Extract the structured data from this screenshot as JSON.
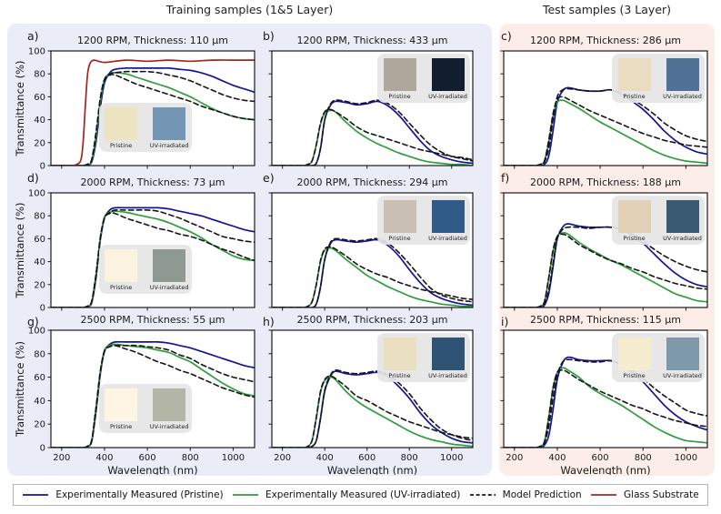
{
  "headers": {
    "training": "Training samples (1&5 Layer)",
    "test": "Test samples (3 Layer)"
  },
  "colors": {
    "pristine_line": "#14149b",
    "uv_line": "#2e9e3c",
    "model_line": "#151515",
    "glass_line": "#a42520",
    "training_bg": "#eaecf8",
    "test_bg": "#fcede8"
  },
  "legend": {
    "entries": [
      {
        "key": "pristine",
        "label": "Experimentally Measured (Pristine)",
        "color": "#14149b",
        "dash": false
      },
      {
        "key": "uv",
        "label": "Experimentally Measured (UV-irradiated)",
        "color": "#2e9e3c",
        "dash": false
      },
      {
        "key": "model",
        "label": "Model Prediction",
        "color": "#151515",
        "dash": true
      },
      {
        "key": "glass",
        "label": "Glass Substrate",
        "color": "#a42520",
        "dash": false
      }
    ]
  },
  "inset_labels": {
    "pristine": "Pristine",
    "uv": "UV-irradiated"
  },
  "chart_data": {
    "type": "line",
    "axes": {
      "xlabel": "Wavelength (nm)",
      "ylabel": "Transmittance (%)",
      "xticks": [
        200,
        400,
        600,
        800,
        1000
      ],
      "yticks": [
        0,
        20,
        40,
        60,
        80,
        100
      ],
      "xlim": [
        150,
        1100
      ],
      "ylim": [
        0,
        100
      ],
      "grid": false
    },
    "x": [
      150,
      250,
      300,
      320,
      340,
      360,
      380,
      400,
      425,
      450,
      500,
      550,
      600,
      650,
      700,
      750,
      800,
      850,
      900,
      950,
      1000,
      1050,
      1100
    ],
    "panels": [
      {
        "id": "a",
        "letter": "a)",
        "title": "1200 RPM, Thickness: 110 μm",
        "section": "training",
        "row": 0,
        "col": 0,
        "inset": {
          "pos": "bottom",
          "pristine_color": "#ece3c1",
          "uv_color": "#7396b4"
        },
        "series": {
          "pristine": [
            0,
            0,
            0,
            1,
            3,
            20,
            50,
            72,
            81,
            84,
            85,
            85,
            85,
            85,
            85,
            84,
            83,
            81,
            78,
            74,
            70,
            67,
            64
          ],
          "uv": [
            0,
            0,
            0,
            1,
            4,
            24,
            55,
            75,
            80,
            81,
            80,
            77,
            74,
            71,
            68,
            64,
            60,
            55,
            50,
            46,
            43,
            41,
            40
          ],
          "model_pristine": [
            0,
            0,
            0,
            1,
            5,
            28,
            58,
            75,
            80,
            81,
            82,
            82,
            82,
            81,
            79,
            77,
            74,
            70,
            66,
            62,
            59,
            57,
            56
          ],
          "model_uv": [
            0,
            0,
            0,
            1,
            5,
            28,
            58,
            75,
            79,
            79,
            75,
            71,
            68,
            65,
            62,
            59,
            56,
            52,
            49,
            46,
            43,
            41,
            40
          ]
        },
        "glass": {
          "x": [
            150,
            240,
            270,
            290,
            300,
            310,
            320,
            330,
            350,
            400,
            500,
            600,
            700,
            800,
            900,
            1000,
            1100
          ],
          "y": [
            0,
            0,
            1,
            5,
            20,
            50,
            78,
            88,
            92,
            90,
            92,
            91,
            92,
            91,
            92,
            92,
            92
          ]
        }
      },
      {
        "id": "b",
        "letter": "b)",
        "title": "1200 RPM, Thickness: 433 μm",
        "section": "training",
        "row": 0,
        "col": 1,
        "inset": {
          "pos": "topright",
          "pristine_color": "#aea79c",
          "uv_color": "#111e30"
        },
        "series": {
          "pristine": [
            0,
            0,
            0,
            0,
            0,
            2,
            15,
            40,
            52,
            56,
            55,
            53,
            54,
            56,
            52,
            44,
            33,
            22,
            13,
            8,
            5,
            3,
            2
          ],
          "uv": [
            0,
            0,
            0,
            1,
            4,
            18,
            36,
            46,
            48,
            47,
            38,
            30,
            24,
            19,
            15,
            11,
            8,
            5,
            3,
            2,
            1,
            1,
            0
          ],
          "model_pristine": [
            0,
            0,
            0,
            0,
            0,
            2,
            15,
            40,
            53,
            57,
            56,
            54,
            55,
            57,
            54,
            47,
            37,
            27,
            18,
            12,
            8,
            6,
            4
          ],
          "model_uv": [
            0,
            0,
            0,
            1,
            4,
            18,
            37,
            47,
            49,
            47,
            41,
            34,
            29,
            26,
            23,
            20,
            17,
            14,
            12,
            10,
            8,
            7,
            5
          ]
        }
      },
      {
        "id": "c",
        "letter": "c)",
        "title": "1200 RPM, Thickness: 286 μm",
        "section": "test",
        "row": 0,
        "col": 2,
        "inset": {
          "pos": "topright",
          "pristine_color": "#e9dcc1",
          "uv_color": "#4f7296"
        },
        "series": {
          "pristine": [
            0,
            0,
            0,
            0,
            1,
            8,
            30,
            55,
            65,
            68,
            66,
            65,
            65,
            66,
            62,
            56,
            49,
            40,
            30,
            22,
            16,
            12,
            10
          ],
          "uv": [
            0,
            0,
            0,
            1,
            4,
            20,
            42,
            55,
            57,
            55,
            50,
            44,
            38,
            33,
            28,
            23,
            18,
            13,
            9,
            6,
            4,
            3,
            2
          ],
          "model_pristine": [
            0,
            0,
            0,
            1,
            3,
            15,
            40,
            60,
            66,
            67,
            66,
            65,
            65,
            66,
            63,
            58,
            52,
            45,
            37,
            31,
            26,
            23,
            21
          ],
          "model_uv": [
            0,
            0,
            0,
            1,
            4,
            22,
            45,
            58,
            60,
            58,
            53,
            48,
            44,
            40,
            36,
            32,
            28,
            25,
            22,
            20,
            18,
            17,
            16
          ]
        }
      },
      {
        "id": "d",
        "letter": "d)",
        "title": "2000 RPM, Thickness: 73 μm",
        "section": "training",
        "row": 1,
        "col": 0,
        "inset": {
          "pos": "bottom",
          "pristine_color": "#fbf3df",
          "uv_color": "#8f9a92"
        },
        "series": {
          "pristine": [
            0,
            0,
            0,
            1,
            4,
            25,
            58,
            78,
            85,
            87,
            87,
            87,
            87,
            87,
            86,
            84,
            82,
            80,
            77,
            74,
            71,
            68,
            66
          ],
          "uv": [
            0,
            0,
            0,
            1,
            5,
            28,
            60,
            79,
            83,
            84,
            83,
            81,
            79,
            77,
            74,
            70,
            66,
            61,
            55,
            50,
            45,
            42,
            41
          ],
          "model_pristine": [
            0,
            0,
            0,
            1,
            5,
            28,
            60,
            78,
            83,
            85,
            85,
            85,
            85,
            84,
            81,
            78,
            74,
            70,
            66,
            62,
            60,
            58,
            57
          ],
          "model_uv": [
            0,
            0,
            0,
            1,
            5,
            28,
            60,
            78,
            82,
            82,
            78,
            75,
            72,
            69,
            67,
            64,
            62,
            59,
            55,
            51,
            48,
            44,
            41
          ]
        }
      },
      {
        "id": "e",
        "letter": "e)",
        "title": "2000 RPM, Thickness: 294 μm",
        "section": "training",
        "row": 1,
        "col": 1,
        "inset": {
          "pos": "topright",
          "pristine_color": "#c9bfb3",
          "uv_color": "#2e5b87"
        },
        "series": {
          "pristine": [
            0,
            0,
            0,
            0,
            0,
            3,
            18,
            42,
            55,
            59,
            58,
            57,
            58,
            59,
            54,
            45,
            33,
            22,
            13,
            8,
            5,
            3,
            2
          ],
          "uv": [
            0,
            0,
            0,
            1,
            5,
            20,
            40,
            50,
            52,
            50,
            42,
            35,
            28,
            23,
            18,
            14,
            10,
            7,
            5,
            3,
            2,
            1,
            1
          ],
          "model_pristine": [
            0,
            0,
            0,
            0,
            0,
            3,
            18,
            42,
            56,
            60,
            59,
            58,
            59,
            60,
            56,
            48,
            38,
            27,
            17,
            11,
            8,
            6,
            5
          ],
          "model_uv": [
            0,
            0,
            0,
            1,
            5,
            20,
            41,
            51,
            53,
            51,
            45,
            38,
            33,
            29,
            26,
            22,
            19,
            16,
            14,
            12,
            10,
            8,
            7
          ]
        }
      },
      {
        "id": "f",
        "letter": "f)",
        "title": "2000 RPM, Thickness: 188 μm",
        "section": "test",
        "row": 1,
        "col": 2,
        "inset": {
          "pos": "topright",
          "pristine_color": "#e2d1b7",
          "uv_color": "#3a5a74"
        },
        "series": {
          "pristine": [
            0,
            0,
            0,
            0,
            2,
            12,
            35,
            60,
            70,
            73,
            71,
            70,
            70,
            70,
            68,
            63,
            56,
            47,
            38,
            30,
            24,
            20,
            18
          ],
          "uv": [
            0,
            0,
            0,
            1,
            5,
            25,
            48,
            62,
            65,
            64,
            57,
            51,
            46,
            41,
            37,
            32,
            27,
            22,
            17,
            12,
            9,
            6,
            5
          ],
          "model_pristine": [
            0,
            0,
            0,
            1,
            3,
            15,
            38,
            60,
            68,
            70,
            70,
            69,
            70,
            70,
            68,
            64,
            58,
            51,
            45,
            40,
            36,
            33,
            31
          ],
          "model_uv": [
            0,
            0,
            0,
            1,
            5,
            26,
            50,
            62,
            64,
            62,
            55,
            50,
            45,
            41,
            38,
            34,
            31,
            27,
            24,
            21,
            19,
            17,
            16
          ]
        }
      },
      {
        "id": "g",
        "letter": "g)",
        "title": "2500 RPM, Thickness: 55 μm",
        "section": "training",
        "row": 2,
        "col": 0,
        "inset": {
          "pos": "bottom",
          "pristine_color": "#fef6e3",
          "uv_color": "#b3b6a6"
        },
        "series": {
          "pristine": [
            0,
            0,
            0,
            1,
            5,
            30,
            62,
            82,
            88,
            90,
            90,
            90,
            90,
            90,
            89,
            87,
            85,
            82,
            79,
            76,
            73,
            70,
            68
          ],
          "uv": [
            0,
            0,
            0,
            1,
            6,
            33,
            64,
            83,
            87,
            88,
            87,
            86,
            85,
            83,
            81,
            77,
            73,
            67,
            61,
            55,
            50,
            46,
            44
          ],
          "model_pristine": [
            0,
            0,
            0,
            1,
            6,
            33,
            64,
            82,
            86,
            87,
            87,
            87,
            86,
            85,
            83,
            79,
            76,
            71,
            67,
            63,
            60,
            58,
            56
          ],
          "model_uv": [
            0,
            0,
            0,
            1,
            6,
            33,
            64,
            82,
            86,
            87,
            84,
            81,
            77,
            73,
            70,
            66,
            63,
            59,
            55,
            51,
            48,
            45,
            43
          ]
        }
      },
      {
        "id": "h",
        "letter": "h)",
        "title": "2500 RPM, Thickness: 203 μm",
        "section": "training",
        "row": 2,
        "col": 1,
        "inset": {
          "pos": "topright",
          "pristine_color": "#ebdfc2",
          "uv_color": "#2e5374"
        },
        "series": {
          "pristine": [
            0,
            0,
            0,
            0,
            1,
            6,
            25,
            48,
            60,
            65,
            63,
            62,
            63,
            64,
            60,
            52,
            42,
            30,
            20,
            13,
            8,
            5,
            4
          ],
          "uv": [
            0,
            0,
            0,
            1,
            6,
            25,
            47,
            57,
            60,
            58,
            48,
            40,
            34,
            29,
            24,
            19,
            14,
            10,
            7,
            5,
            3,
            2,
            1
          ],
          "model_pristine": [
            0,
            0,
            0,
            0,
            1,
            6,
            25,
            49,
            61,
            66,
            64,
            63,
            64,
            65,
            62,
            55,
            46,
            34,
            24,
            16,
            11,
            8,
            6
          ],
          "model_uv": [
            0,
            0,
            0,
            1,
            6,
            26,
            48,
            58,
            61,
            59,
            52,
            44,
            40,
            35,
            30,
            26,
            22,
            19,
            16,
            13,
            11,
            9,
            8
          ]
        }
      },
      {
        "id": "i",
        "letter": "i)",
        "title": "2500 RPM, Thickness: 115 μm",
        "section": "test",
        "row": 2,
        "col": 2,
        "inset": {
          "pos": "topright",
          "pristine_color": "#f6ecd0",
          "uv_color": "#7e99ac"
        },
        "series": {
          "pristine": [
            0,
            0,
            0,
            0,
            2,
            10,
            32,
            58,
            72,
            77,
            75,
            74,
            74,
            74,
            70,
            64,
            56,
            46,
            36,
            28,
            22,
            18,
            15
          ],
          "uv": [
            0,
            0,
            0,
            1,
            5,
            25,
            50,
            64,
            68,
            66,
            60,
            52,
            46,
            41,
            36,
            30,
            24,
            18,
            13,
            9,
            6,
            5,
            4
          ],
          "model_pristine": [
            0,
            0,
            0,
            1,
            4,
            18,
            42,
            62,
            73,
            75,
            74,
            73,
            73,
            74,
            71,
            66,
            59,
            51,
            44,
            38,
            32,
            29,
            27
          ],
          "model_uv": [
            0,
            0,
            0,
            1,
            5,
            26,
            51,
            64,
            66,
            64,
            58,
            53,
            48,
            44,
            40,
            36,
            33,
            29,
            26,
            23,
            21,
            19,
            18
          ]
        }
      }
    ]
  }
}
